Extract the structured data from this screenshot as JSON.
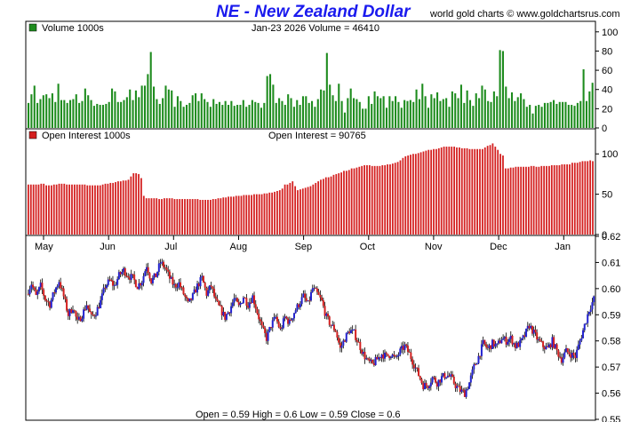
{
  "header": {
    "title": "NE - New Zealand Dollar",
    "credit": "world gold charts © www.goldchartsrus.com"
  },
  "colors": {
    "volume": "#1e8c1e",
    "open_interest": "#d42020",
    "up_candle": "#2323d0",
    "down_candle": "#d42020",
    "title": "#1a1aee"
  },
  "chart_data": [
    {
      "type": "bar",
      "panel": "volume",
      "legend": "Volume  1000s",
      "info": "Jan-23  2026   Volume = 46410",
      "ylim": [
        0,
        110
      ],
      "yticks": [
        0,
        20,
        40,
        60,
        80,
        100
      ],
      "legend_position": "top-left",
      "values": [
        26,
        35,
        44,
        26,
        30,
        34,
        35,
        31,
        36,
        27,
        46,
        29,
        29,
        26,
        29,
        30,
        35,
        26,
        28,
        41,
        34,
        29,
        23,
        25,
        24,
        24,
        25,
        27,
        41,
        38,
        27,
        27,
        29,
        32,
        40,
        29,
        39,
        32,
        44,
        44,
        56,
        79,
        43,
        30,
        25,
        31,
        44,
        40,
        39,
        22,
        33,
        28,
        22,
        24,
        26,
        34,
        36,
        28,
        36,
        30,
        27,
        22,
        30,
        25,
        27,
        24,
        28,
        24,
        28,
        23,
        24,
        24,
        29,
        22,
        24,
        29,
        27,
        26,
        21,
        26,
        54,
        56,
        45,
        26,
        31,
        28,
        24,
        35,
        31,
        22,
        29,
        24,
        33,
        33,
        26,
        28,
        22,
        30,
        40,
        39,
        78,
        45,
        34,
        28,
        46,
        28,
        16,
        31,
        41,
        31,
        30,
        27,
        20,
        20,
        33,
        25,
        38,
        33,
        31,
        33,
        21,
        33,
        28,
        33,
        27,
        21,
        29,
        28,
        29,
        27,
        40,
        30,
        46,
        33,
        21,
        35,
        31,
        37,
        28,
        30,
        31,
        22,
        38,
        36,
        31,
        45,
        26,
        39,
        29,
        23,
        36,
        31,
        44,
        40,
        28,
        27,
        38,
        33,
        81,
        80,
        43,
        31,
        37,
        28,
        32,
        36,
        30,
        22,
        24,
        15,
        23,
        24,
        22,
        26,
        26,
        27,
        29,
        25,
        27,
        27,
        27,
        24,
        24,
        23,
        26,
        28,
        61,
        28,
        38,
        47
      ]
    },
    {
      "type": "bar",
      "panel": "open_interest",
      "legend": "Open Interest  1000s",
      "info": "Open Interest = 90765",
      "ylim": [
        0,
        130
      ],
      "yticks": [
        0,
        50,
        100
      ],
      "legend_position": "top-left",
      "values": [
        62,
        62,
        62,
        62,
        62,
        63,
        63,
        61,
        61,
        61,
        62,
        62,
        63,
        63,
        63,
        62,
        62,
        62,
        62,
        62,
        62,
        62,
        62,
        61,
        61,
        61,
        61,
        61,
        61,
        62,
        63,
        63,
        64,
        64,
        65,
        66,
        66,
        67,
        67,
        68,
        72,
        76,
        76,
        75,
        70,
        48,
        45,
        45,
        45,
        45,
        45,
        44,
        44,
        45,
        45,
        45,
        45,
        44,
        44,
        44,
        44,
        44,
        44,
        44,
        44,
        44,
        44,
        43,
        43,
        43,
        43,
        43,
        44,
        44,
        45,
        45,
        46,
        46,
        47,
        47,
        47,
        48,
        48,
        48,
        49,
        49,
        49,
        49,
        50,
        50,
        50,
        50,
        51,
        51,
        52,
        52,
        53,
        54,
        55,
        57,
        62,
        62,
        64,
        66,
        60,
        55,
        56,
        57,
        58,
        59,
        60,
        62,
        64,
        66,
        68,
        69,
        71,
        71,
        72,
        74,
        75,
        76,
        77,
        79,
        79,
        80,
        82,
        82,
        83,
        84,
        85,
        86,
        86,
        86,
        85,
        85,
        85,
        85,
        86,
        86,
        87,
        87,
        88,
        89,
        90,
        92,
        95,
        97,
        98,
        99,
        100,
        100,
        101,
        102,
        103,
        104,
        105,
        105,
        106,
        106,
        107,
        108,
        109,
        109,
        109,
        109,
        109,
        108,
        108,
        107,
        107,
        107,
        106,
        106,
        106,
        106,
        106,
        106,
        108,
        110,
        111,
        113,
        109,
        105,
        100,
        98,
        82,
        82,
        83,
        83,
        84,
        84,
        84,
        84,
        84,
        84,
        85,
        85,
        84,
        84,
        85,
        85,
        85,
        85,
        86,
        86,
        86,
        86,
        87,
        87,
        87,
        87,
        89,
        89,
        89,
        90,
        91,
        91,
        91,
        92,
        91
      ]
    },
    {
      "type": "candlestick",
      "panel": "price",
      "info": "Open = 0.59    High = 0.6    Low = 0.59    Close = 0.6",
      "ylim": [
        0.55,
        0.62
      ],
      "yticks": [
        0.55,
        0.56,
        0.57,
        0.58,
        0.59,
        0.6,
        0.61,
        0.62
      ],
      "x_month_labels": [
        "May",
        "Jun",
        "Jul",
        "Aug",
        "Sep",
        "Oct",
        "Nov",
        "Dec",
        "Jan"
      ],
      "close_path": [
        [
          0,
          0.598
        ],
        [
          3,
          0.602
        ],
        [
          6,
          0.597
        ],
        [
          9,
          0.601
        ],
        [
          12,
          0.596
        ],
        [
          15,
          0.594
        ],
        [
          18,
          0.599
        ],
        [
          21,
          0.603
        ],
        [
          24,
          0.597
        ],
        [
          27,
          0.59
        ],
        [
          30,
          0.593
        ],
        [
          33,
          0.587
        ],
        [
          36,
          0.59
        ],
        [
          39,
          0.594
        ],
        [
          42,
          0.589
        ],
        [
          45,
          0.591
        ],
        [
          48,
          0.595
        ],
        [
          51,
          0.601
        ],
        [
          54,
          0.603
        ],
        [
          57,
          0.601
        ],
        [
          60,
          0.605
        ],
        [
          63,
          0.607
        ],
        [
          66,
          0.605
        ],
        [
          69,
          0.604
        ],
        [
          72,
          0.601
        ],
        [
          75,
          0.603
        ],
        [
          78,
          0.609
        ],
        [
          81,
          0.603
        ],
        [
          84,
          0.605
        ],
        [
          87,
          0.61
        ],
        [
          90,
          0.608
        ],
        [
          93,
          0.604
        ],
        [
          96,
          0.601
        ],
        [
          99,
          0.602
        ],
        [
          102,
          0.598
        ],
        [
          105,
          0.594
        ],
        [
          108,
          0.597
        ],
        [
          111,
          0.601
        ],
        [
          114,
          0.604
        ],
        [
          117,
          0.598
        ],
        [
          120,
          0.601
        ],
        [
          123,
          0.595
        ],
        [
          126,
          0.592
        ],
        [
          129,
          0.589
        ],
        [
          132,
          0.592
        ],
        [
          135,
          0.596
        ],
        [
          138,
          0.593
        ],
        [
          141,
          0.597
        ],
        [
          144,
          0.594
        ],
        [
          147,
          0.597
        ],
        [
          150,
          0.591
        ],
        [
          153,
          0.585
        ],
        [
          156,
          0.581
        ],
        [
          159,
          0.586
        ],
        [
          162,
          0.589
        ],
        [
          165,
          0.584
        ],
        [
          168,
          0.589
        ],
        [
          171,
          0.587
        ],
        [
          174,
          0.591
        ],
        [
          177,
          0.594
        ],
        [
          180,
          0.597
        ],
        [
          183,
          0.594
        ],
        [
          186,
          0.6
        ],
        [
          189,
          0.598
        ],
        [
          192,
          0.595
        ],
        [
          195,
          0.589
        ],
        [
          198,
          0.586
        ],
        [
          201,
          0.584
        ],
        [
          204,
          0.577
        ],
        [
          207,
          0.581
        ],
        [
          210,
          0.584
        ],
        [
          213,
          0.583
        ],
        [
          216,
          0.579
        ],
        [
          219,
          0.575
        ],
        [
          222,
          0.572
        ],
        [
          225,
          0.571
        ],
        [
          228,
          0.573
        ],
        [
          231,
          0.575
        ],
        [
          234,
          0.574
        ],
        [
          237,
          0.575
        ],
        [
          240,
          0.573
        ],
        [
          243,
          0.576
        ],
        [
          246,
          0.578
        ],
        [
          249,
          0.575
        ],
        [
          252,
          0.571
        ],
        [
          255,
          0.567
        ],
        [
          258,
          0.563
        ],
        [
          261,
          0.563
        ],
        [
          264,
          0.566
        ],
        [
          267,
          0.564
        ],
        [
          270,
          0.566
        ],
        [
          273,
          0.567
        ],
        [
          276,
          0.566
        ],
        [
          279,
          0.563
        ],
        [
          282,
          0.561
        ],
        [
          285,
          0.56
        ],
        [
          288,
          0.564
        ],
        [
          291,
          0.57
        ],
        [
          294,
          0.574
        ],
        [
          297,
          0.579
        ],
        [
          300,
          0.577
        ],
        [
          303,
          0.579
        ],
        [
          306,
          0.578
        ],
        [
          309,
          0.581
        ],
        [
          312,
          0.58
        ],
        [
          315,
          0.581
        ],
        [
          318,
          0.578
        ],
        [
          321,
          0.579
        ],
        [
          324,
          0.582
        ],
        [
          327,
          0.586
        ],
        [
          330,
          0.583
        ],
        [
          333,
          0.58
        ],
        [
          336,
          0.578
        ],
        [
          339,
          0.577
        ],
        [
          342,
          0.58
        ],
        [
          345,
          0.576
        ],
        [
          348,
          0.573
        ],
        [
          351,
          0.576
        ],
        [
          354,
          0.575
        ],
        [
          357,
          0.574
        ],
        [
          360,
          0.58
        ],
        [
          363,
          0.586
        ],
        [
          366,
          0.592
        ],
        [
          369,
          0.596
        ]
      ]
    }
  ]
}
